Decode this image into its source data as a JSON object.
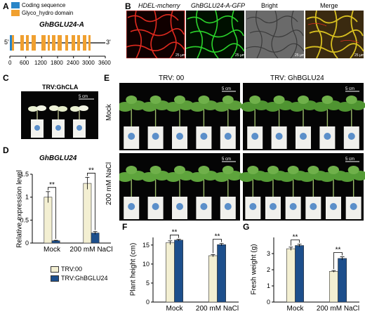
{
  "panels": {
    "A": {
      "label": "A",
      "legend": [
        "Coding sequence",
        "Glyco_hydro domain"
      ],
      "gene": "GhBGLU24-A",
      "five": "5'",
      "three": "3'",
      "ticks": [
        "0",
        "600",
        "1200",
        "1800",
        "2400",
        "3000",
        "3600"
      ],
      "colors": {
        "coding": "#2a86c8",
        "domain": "#f0a030"
      }
    },
    "B": {
      "label": "B",
      "titles": [
        "HDEL-mcherry",
        "GhBGLU24-A-GFP",
        "Bright",
        "Merge"
      ],
      "scale": "25 µm"
    },
    "C": {
      "label": "C",
      "title": "TRV:GhCLA",
      "scale": "5 cm"
    },
    "D": {
      "label": "D",
      "title": "GhBGLU24",
      "ylabel": "Relative expression level",
      "sig": "**"
    },
    "E": {
      "label": "E",
      "col1": "TRV: 00",
      "col2": "TRV: GhBGLU24",
      "row1": "Mock",
      "row2": "200 mM NaCl",
      "scale": "5 cm"
    },
    "F": {
      "label": "F",
      "ylabel": "Plant height (cm)",
      "sig": "**"
    },
    "G": {
      "label": "G",
      "ylabel": "Fresh weight (g)",
      "sig": "**"
    },
    "legend": {
      "items": [
        "TRV:00",
        "TRV:GhBGLU24"
      ],
      "colors": [
        "#f3efd2",
        "#1d4f8c"
      ]
    }
  },
  "chart_data": [
    {
      "type": "bar",
      "panel": "D",
      "title": "GhBGLU24",
      "ylabel": "Relative expression level",
      "categories": [
        "Mock",
        "200 mM NaCl"
      ],
      "ylim": [
        0,
        1.5
      ],
      "yticks": [
        "0",
        "0.5",
        "1",
        "1.5"
      ],
      "series": [
        {
          "name": "TRV:00",
          "values": [
            1.0,
            1.3
          ],
          "errors": [
            0.12,
            0.13
          ]
        },
        {
          "name": "TRV:GhBGLU24",
          "values": [
            0.05,
            0.22
          ],
          "errors": [
            0.01,
            0.03
          ]
        }
      ]
    },
    {
      "type": "bar",
      "panel": "F",
      "ylabel": "Plant height (cm)",
      "categories": [
        "Mock",
        "200 mM NaCl"
      ],
      "ylim": [
        0,
        17
      ],
      "yticks": [
        "0",
        "5",
        "10",
        "15"
      ],
      "series": [
        {
          "name": "TRV:00",
          "values": [
            15.6,
            12.2
          ],
          "errors": [
            0.5,
            0.3
          ]
        },
        {
          "name": "TRV:GhBGLU24",
          "values": [
            16.3,
            15.1
          ],
          "errors": [
            0.2,
            0.3
          ]
        }
      ]
    },
    {
      "type": "bar",
      "panel": "G",
      "ylabel": "Fresh weight (g)",
      "categories": [
        "Mock",
        "200 mM NaCl"
      ],
      "ylim": [
        0,
        4
      ],
      "yticks": [
        "0",
        "1",
        "2",
        "3"
      ],
      "series": [
        {
          "name": "TRV:00",
          "values": [
            3.3,
            1.9
          ],
          "errors": [
            0.1,
            0.05
          ]
        },
        {
          "name": "TRV:GhBGLU24",
          "values": [
            3.5,
            2.7
          ],
          "errors": [
            0.08,
            0.1
          ]
        }
      ]
    }
  ]
}
